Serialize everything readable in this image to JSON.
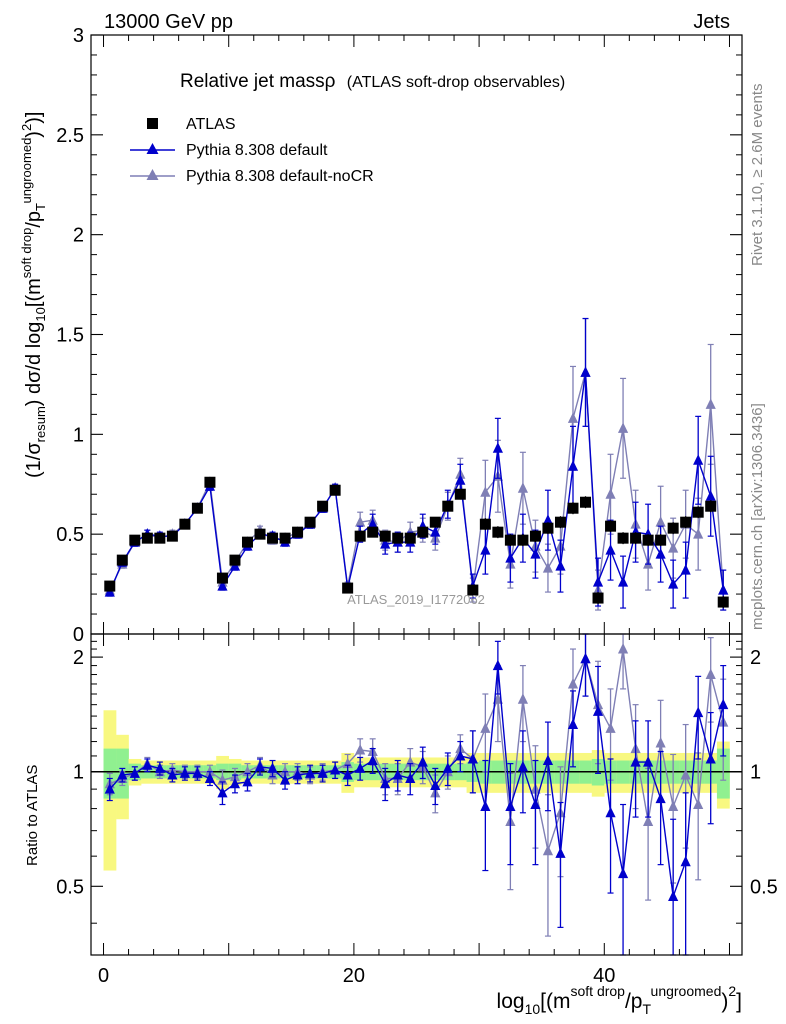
{
  "header": {
    "left": "13000 GeV pp",
    "right": "Jets"
  },
  "side_labels": {
    "rivet": "Rivet 3.1.10, ≥ 2.6M events",
    "mcplots": "mcplots.cern.ch [arXiv:1306.3436]"
  },
  "title": {
    "main": "Relative jet massρ",
    "sub": "(ATLAS soft-drop observables)"
  },
  "watermark": "ATLAS_2019_I1772062",
  "legend": {
    "entries": [
      "ATLAS",
      "Pythia 8.308 default",
      "Pythia 8.308 default-noCR"
    ]
  },
  "axis_text": {
    "ylabel_main": "(1/σresum) dσ/d log10[(m soft drop/pT ungroomed)2]",
    "ylabel_ratio": "Ratio to ATLAS",
    "xlabel": "log10[(m soft drop/pT ungroomed)2]"
  },
  "colors": {
    "atlas": "#000000",
    "default": "#0000cc",
    "noCR": "#7f7fb5",
    "band_green": "#90f090",
    "band_yellow": "#f8f880"
  },
  "chart_data": [
    {
      "type": "scatter",
      "panel": "main",
      "xlim": [
        -1,
        51
      ],
      "ylim": [
        0,
        3
      ],
      "yticks": [
        0,
        0.5,
        1,
        1.5,
        2,
        2.5,
        3
      ],
      "xticks": [
        0,
        20,
        40
      ],
      "x": [
        0.5,
        1.5,
        2.5,
        3.5,
        4.5,
        5.5,
        6.5,
        7.5,
        8.5,
        9.5,
        10.5,
        11.5,
        12.5,
        13.5,
        14.5,
        15.5,
        16.5,
        17.5,
        18.5,
        19.5,
        20.5,
        21.5,
        22.5,
        23.5,
        24.5,
        25.5,
        26.5,
        27.5,
        28.5,
        29.5,
        30.5,
        31.5,
        32.5,
        33.5,
        34.5,
        35.5,
        36.5,
        37.5,
        38.5,
        39.5,
        40.5,
        41.5,
        42.5,
        43.5,
        44.5,
        45.5,
        46.5,
        47.5,
        48.5,
        49.5
      ],
      "series": [
        {
          "name": "ATLAS",
          "values": [
            0.24,
            0.37,
            0.47,
            0.48,
            0.48,
            0.49,
            0.55,
            0.63,
            0.76,
            0.28,
            0.37,
            0.46,
            0.5,
            0.48,
            0.48,
            0.51,
            0.56,
            0.64,
            0.72,
            0.23,
            0.49,
            0.51,
            0.49,
            0.48,
            0.48,
            0.51,
            0.56,
            0.64,
            0.7,
            0.22,
            0.55,
            0.51,
            0.47,
            0.47,
            0.49,
            0.53,
            0.56,
            0.63,
            0.66,
            0.18,
            0.54,
            0.48,
            0.48,
            0.47,
            0.47,
            0.53,
            0.56,
            0.61,
            0.64,
            0.16
          ],
          "errors": [
            0.02,
            0.02,
            0.02,
            0.02,
            0.02,
            0.02,
            0.02,
            0.02,
            0.02,
            0.02,
            0.02,
            0.02,
            0.02,
            0.02,
            0.02,
            0.02,
            0.02,
            0.02,
            0.02,
            0.02,
            0.02,
            0.02,
            0.02,
            0.02,
            0.02,
            0.02,
            0.02,
            0.02,
            0.02,
            0.02,
            0.03,
            0.03,
            0.03,
            0.03,
            0.03,
            0.03,
            0.03,
            0.03,
            0.03,
            0.03,
            0.03,
            0.03,
            0.03,
            0.03,
            0.03,
            0.03,
            0.03,
            0.03,
            0.03,
            0.03
          ]
        },
        {
          "name": "Pythia 8.308 default",
          "values": [
            0.21,
            0.36,
            0.46,
            0.5,
            0.49,
            0.49,
            0.55,
            0.63,
            0.74,
            0.24,
            0.34,
            0.44,
            0.5,
            0.49,
            0.46,
            0.5,
            0.55,
            0.63,
            0.73,
            0.23,
            0.5,
            0.55,
            0.45,
            0.46,
            0.46,
            0.54,
            0.51,
            0.65,
            0.77,
            0.24,
            0.42,
            0.93,
            0.38,
            0.48,
            0.4,
            0.57,
            0.34,
            0.84,
            1.31,
            0.26,
            0.42,
            0.26,
            0.51,
            0.5,
            0.4,
            0.25,
            0.32,
            0.87,
            0.69,
            0.22
          ],
          "errors": [
            0.02,
            0.02,
            0.02,
            0.02,
            0.02,
            0.02,
            0.02,
            0.02,
            0.02,
            0.02,
            0.02,
            0.02,
            0.02,
            0.02,
            0.02,
            0.02,
            0.02,
            0.02,
            0.02,
            0.02,
            0.04,
            0.05,
            0.05,
            0.05,
            0.05,
            0.06,
            0.06,
            0.07,
            0.08,
            0.06,
            0.12,
            0.15,
            0.12,
            0.12,
            0.12,
            0.15,
            0.13,
            0.2,
            0.27,
            0.12,
            0.15,
            0.13,
            0.15,
            0.15,
            0.14,
            0.12,
            0.14,
            0.22,
            0.2,
            0.1
          ]
        },
        {
          "name": "Pythia 8.308 default-noCR",
          "values": [
            0.22,
            0.35,
            0.46,
            0.5,
            0.48,
            0.5,
            0.55,
            0.63,
            0.76,
            0.26,
            0.36,
            0.46,
            0.52,
            0.47,
            0.48,
            0.51,
            0.55,
            0.63,
            0.73,
            0.24,
            0.56,
            0.57,
            0.47,
            0.46,
            0.51,
            0.52,
            0.48,
            0.64,
            0.8,
            0.22,
            0.71,
            0.79,
            0.35,
            0.73,
            0.44,
            0.33,
            0.44,
            1.08,
            1.31,
            0.22,
            0.7,
            1.03,
            0.55,
            0.35,
            0.56,
            0.43,
            0.55,
            0.5,
            1.15,
            0.22
          ],
          "errors": [
            0.02,
            0.02,
            0.02,
            0.02,
            0.02,
            0.02,
            0.02,
            0.02,
            0.02,
            0.02,
            0.02,
            0.02,
            0.02,
            0.02,
            0.02,
            0.02,
            0.02,
            0.02,
            0.02,
            0.02,
            0.05,
            0.05,
            0.05,
            0.05,
            0.05,
            0.06,
            0.06,
            0.07,
            0.08,
            0.06,
            0.16,
            0.18,
            0.12,
            0.18,
            0.13,
            0.12,
            0.14,
            0.26,
            0.27,
            0.1,
            0.2,
            0.25,
            0.17,
            0.13,
            0.18,
            0.15,
            0.17,
            0.18,
            0.3,
            0.1
          ]
        }
      ]
    },
    {
      "type": "scatter",
      "panel": "ratio",
      "xlim": [
        -1,
        51
      ],
      "ylim": [
        0.33,
        2.3
      ],
      "yticks": [
        0.5,
        1,
        2
      ],
      "xticks": [
        0,
        20,
        40
      ],
      "x": [
        0.5,
        1.5,
        2.5,
        3.5,
        4.5,
        5.5,
        6.5,
        7.5,
        8.5,
        9.5,
        10.5,
        11.5,
        12.5,
        13.5,
        14.5,
        15.5,
        16.5,
        17.5,
        18.5,
        19.5,
        20.5,
        21.5,
        22.5,
        23.5,
        24.5,
        25.5,
        26.5,
        27.5,
        28.5,
        29.5,
        30.5,
        31.5,
        32.5,
        33.5,
        34.5,
        35.5,
        36.5,
        37.5,
        38.5,
        39.5,
        40.5,
        41.5,
        42.5,
        43.5,
        44.5,
        45.5,
        46.5,
        47.5,
        48.5,
        49.5
      ],
      "band_green_halfwidth": [
        0.15,
        0.15,
        0.05,
        0.04,
        0.04,
        0.04,
        0.04,
        0.04,
        0.04,
        0.05,
        0.05,
        0.04,
        0.04,
        0.04,
        0.04,
        0.04,
        0.04,
        0.04,
        0.04,
        0.06,
        0.05,
        0.05,
        0.05,
        0.05,
        0.05,
        0.05,
        0.05,
        0.05,
        0.05,
        0.06,
        0.07,
        0.07,
        0.07,
        0.07,
        0.07,
        0.07,
        0.07,
        0.07,
        0.07,
        0.08,
        0.07,
        0.07,
        0.07,
        0.07,
        0.07,
        0.07,
        0.07,
        0.07,
        0.07,
        0.15
      ],
      "band_yellow_halfwidth": [
        0.45,
        0.25,
        0.08,
        0.07,
        0.07,
        0.07,
        0.07,
        0.07,
        0.07,
        0.1,
        0.08,
        0.07,
        0.07,
        0.07,
        0.07,
        0.07,
        0.07,
        0.07,
        0.07,
        0.12,
        0.09,
        0.09,
        0.09,
        0.09,
        0.09,
        0.09,
        0.09,
        0.09,
        0.09,
        0.12,
        0.12,
        0.12,
        0.12,
        0.12,
        0.12,
        0.12,
        0.12,
        0.12,
        0.12,
        0.14,
        0.12,
        0.12,
        0.12,
        0.12,
        0.12,
        0.12,
        0.12,
        0.12,
        0.12,
        0.2
      ],
      "series": [
        {
          "name": "Pythia 8.308 default",
          "values": [
            0.9,
            0.98,
            0.99,
            1.04,
            1.02,
            0.98,
            0.99,
            0.99,
            0.96,
            0.88,
            0.93,
            0.94,
            1.03,
            1.02,
            0.95,
            0.98,
            0.99,
            0.99,
            1.01,
            0.98,
            1.02,
            1.07,
            0.93,
            0.98,
            0.96,
            1.06,
            0.92,
            1.02,
            1.1,
            1.08,
            0.81,
            1.9,
            0.81,
            1.03,
            0.82,
            1.07,
            0.61,
            1.33,
            1.98,
            1.44,
            0.78,
            0.54,
            1.06,
            1.06,
            0.85,
            0.47,
            0.58,
            1.43,
            1.08,
            1.5
          ],
          "errors": [
            0.06,
            0.04,
            0.04,
            0.04,
            0.04,
            0.04,
            0.04,
            0.04,
            0.04,
            0.06,
            0.05,
            0.05,
            0.05,
            0.05,
            0.05,
            0.05,
            0.05,
            0.05,
            0.05,
            0.06,
            0.07,
            0.08,
            0.09,
            0.09,
            0.09,
            0.1,
            0.1,
            0.1,
            0.1,
            0.2,
            0.26,
            0.3,
            0.24,
            0.25,
            0.25,
            0.28,
            0.22,
            0.3,
            0.4,
            0.45,
            0.3,
            0.28,
            0.3,
            0.3,
            0.28,
            0.28,
            0.3,
            0.35,
            0.35,
            0.4
          ]
        },
        {
          "name": "Pythia 8.308 default-noCR",
          "values": [
            0.93,
            0.96,
            0.99,
            1.05,
            1.0,
            1.01,
            1.0,
            1.0,
            1.0,
            0.95,
            0.97,
            1.0,
            1.04,
            0.98,
            1.0,
            1.0,
            0.98,
            1.0,
            1.01,
            1.05,
            1.14,
            1.13,
            0.96,
            0.96,
            1.06,
            1.03,
            0.88,
            1.0,
            1.15,
            1.08,
            1.3,
            1.55,
            0.74,
            1.55,
            0.9,
            0.62,
            0.78,
            1.7,
            1.98,
            1.5,
            1.3,
            2.1,
            1.15,
            0.74,
            1.19,
            0.81,
            0.98,
            0.82,
            1.8,
            1.35
          ],
          "errors": [
            0.06,
            0.04,
            0.04,
            0.04,
            0.04,
            0.04,
            0.04,
            0.04,
            0.04,
            0.06,
            0.05,
            0.05,
            0.05,
            0.05,
            0.05,
            0.05,
            0.05,
            0.05,
            0.05,
            0.06,
            0.08,
            0.09,
            0.09,
            0.09,
            0.09,
            0.1,
            0.1,
            0.1,
            0.1,
            0.2,
            0.3,
            0.35,
            0.25,
            0.35,
            0.27,
            0.25,
            0.25,
            0.4,
            0.4,
            0.45,
            0.35,
            0.45,
            0.35,
            0.28,
            0.35,
            0.3,
            0.35,
            0.3,
            0.45,
            0.4
          ]
        }
      ]
    }
  ]
}
